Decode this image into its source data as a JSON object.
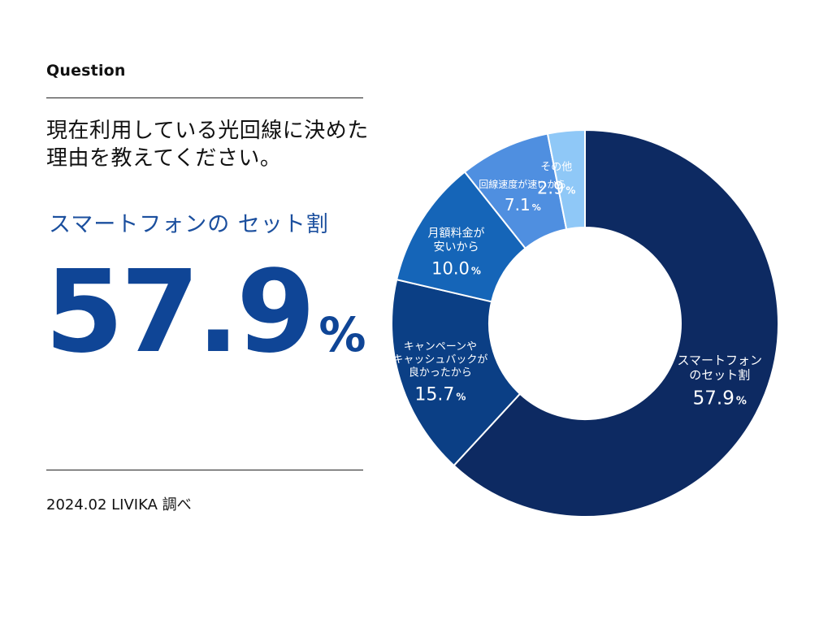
{
  "header": {
    "label": "Question",
    "question_line1": "現在利用している光回線に決めた",
    "question_line2": "理由を教えてください。"
  },
  "highlight": {
    "label": "スマートフォンの セット割",
    "value": "57.9",
    "unit": "%"
  },
  "source": "2024.02 LIVIKA 調べ",
  "chart_data": {
    "type": "pie",
    "style": "donut",
    "unit": "%",
    "slices": [
      {
        "label_lines": [
          "スマートフォン",
          "のセット割"
        ],
        "value": 57.9,
        "color": "#0d2a62"
      },
      {
        "label_lines": [
          "キャンペーンや",
          "キャッシュバックが",
          "良かったから"
        ],
        "value": 15.7,
        "color": "#0b3f85"
      },
      {
        "label_lines": [
          "月額料金が",
          "安いから"
        ],
        "value": 10.0,
        "color": "#1565b8"
      },
      {
        "label_lines": [
          "回線速度が速いから"
        ],
        "value": 7.1,
        "color": "#4f8fe0"
      },
      {
        "label_lines": [
          "その他"
        ],
        "value": 2.9,
        "color": "#8fc8f7"
      }
    ]
  }
}
